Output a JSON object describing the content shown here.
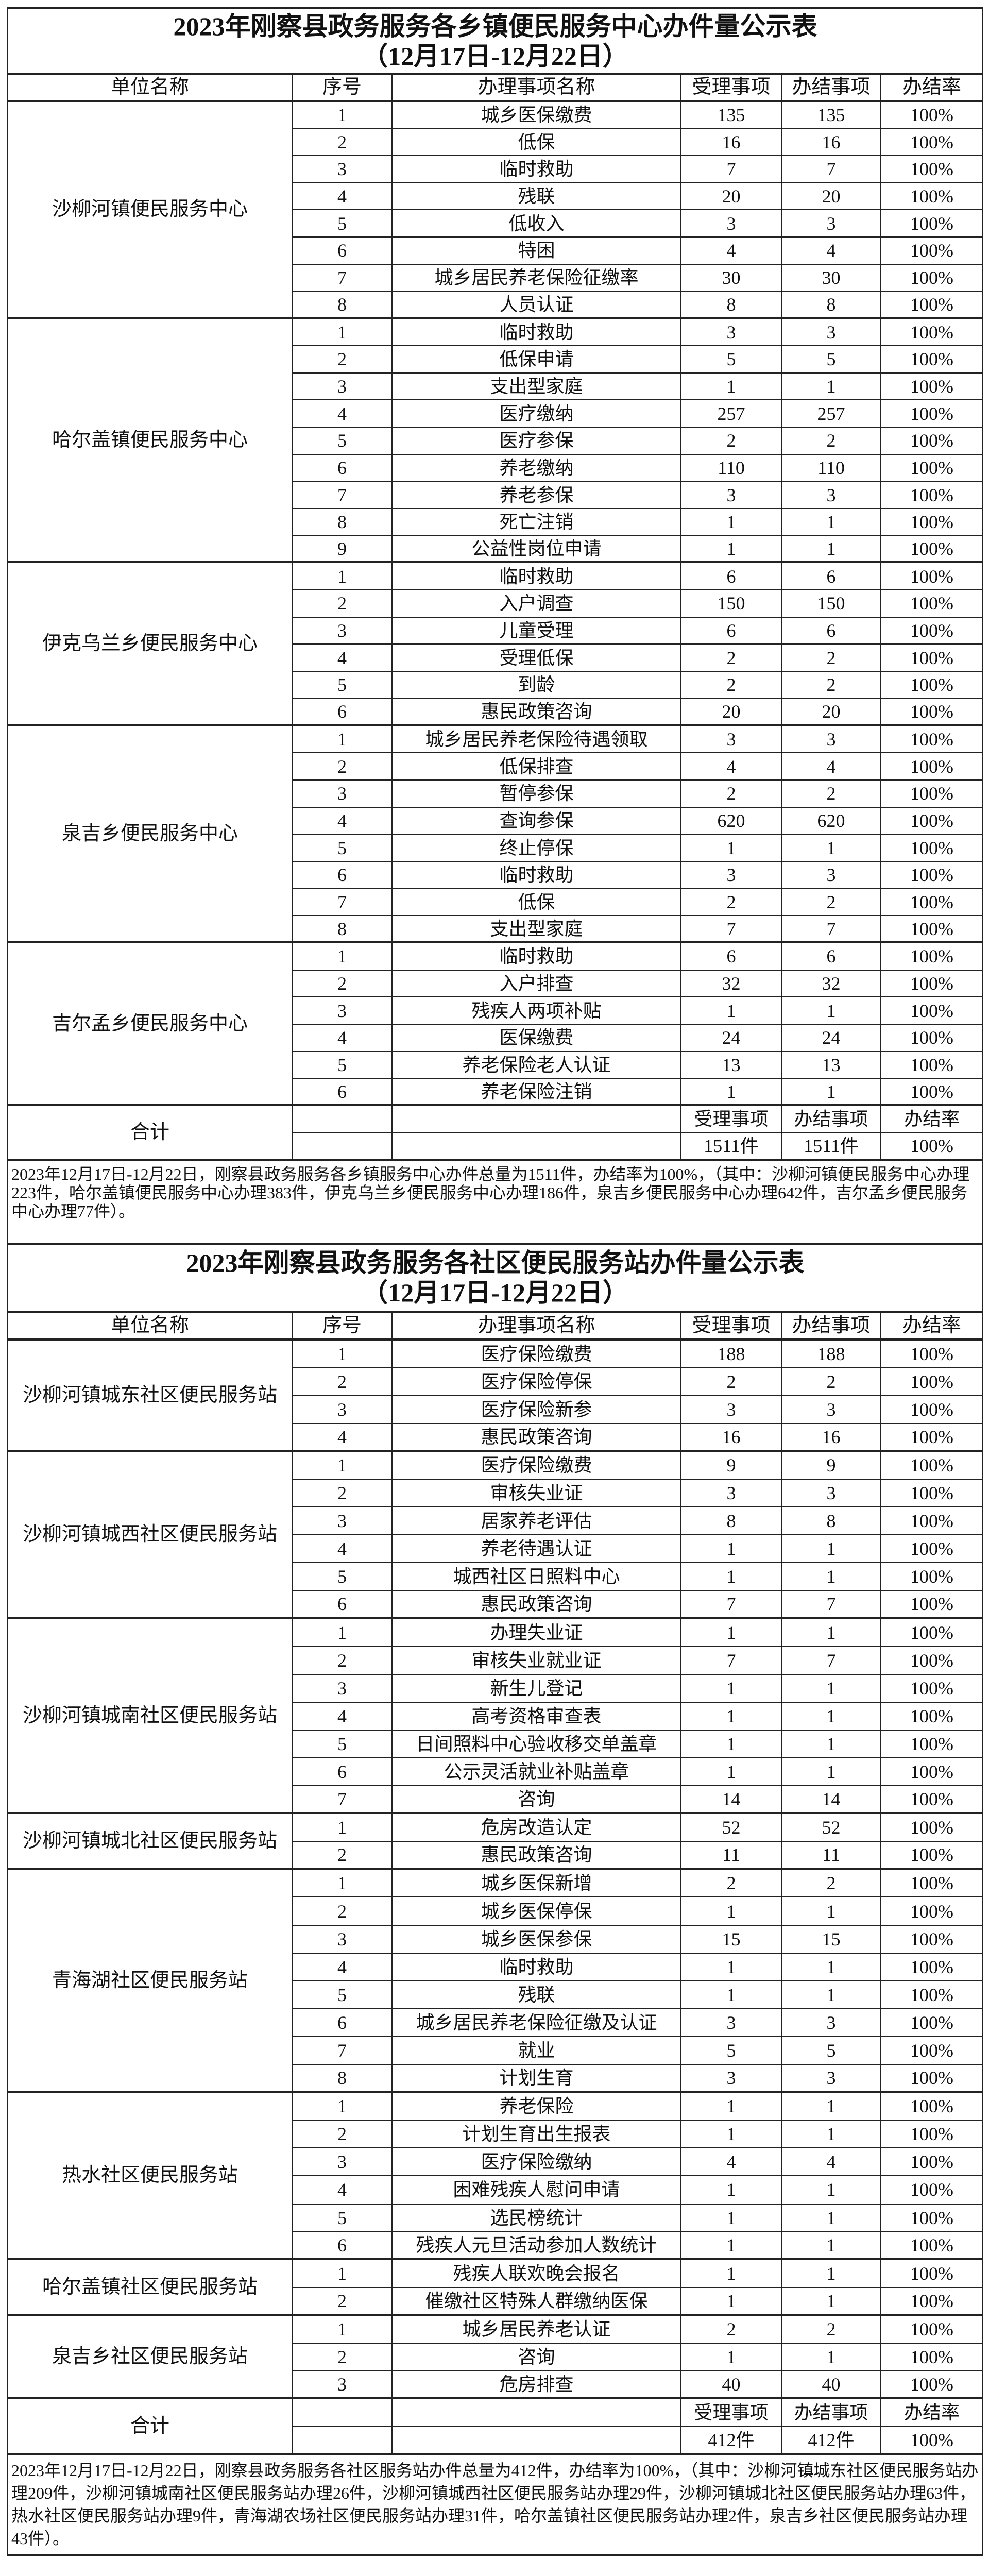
{
  "columns": [
    "单位名称",
    "序号",
    "办理事项名称",
    "受理事项",
    "办结事项",
    "办结率"
  ],
  "tables": [
    {
      "title": "2023年刚察县政务服务各乡镇便民服务中心办件量公示表",
      "subtitle": "（12月17日-12月22日）",
      "groups": [
        {
          "unit": "沙柳河镇便民服务中心",
          "rows": [
            [
              "1",
              "城乡医保缴费",
              "135",
              "135",
              "100%"
            ],
            [
              "2",
              "低保",
              "16",
              "16",
              "100%"
            ],
            [
              "3",
              "临时救助",
              "7",
              "7",
              "100%"
            ],
            [
              "4",
              "残联",
              "20",
              "20",
              "100%"
            ],
            [
              "5",
              "低收入",
              "3",
              "3",
              "100%"
            ],
            [
              "6",
              "特困",
              "4",
              "4",
              "100%"
            ],
            [
              "7",
              "城乡居民养老保险征缴率",
              "30",
              "30",
              "100%"
            ],
            [
              "8",
              "人员认证",
              "8",
              "8",
              "100%"
            ]
          ]
        },
        {
          "unit": "哈尔盖镇便民服务中心",
          "rows": [
            [
              "1",
              "临时救助",
              "3",
              "3",
              "100%"
            ],
            [
              "2",
              "低保申请",
              "5",
              "5",
              "100%"
            ],
            [
              "3",
              "支出型家庭",
              "1",
              "1",
              "100%"
            ],
            [
              "4",
              "医疗缴纳",
              "257",
              "257",
              "100%"
            ],
            [
              "5",
              "医疗参保",
              "2",
              "2",
              "100%"
            ],
            [
              "6",
              "养老缴纳",
              "110",
              "110",
              "100%"
            ],
            [
              "7",
              "养老参保",
              "3",
              "3",
              "100%"
            ],
            [
              "8",
              "死亡注销",
              "1",
              "1",
              "100%"
            ],
            [
              "9",
              "公益性岗位申请",
              "1",
              "1",
              "100%"
            ]
          ]
        },
        {
          "unit": "伊克乌兰乡便民服务中心",
          "rows": [
            [
              "1",
              "临时救助",
              "6",
              "6",
              "100%"
            ],
            [
              "2",
              "入户调查",
              "150",
              "150",
              "100%"
            ],
            [
              "3",
              "儿童受理",
              "6",
              "6",
              "100%"
            ],
            [
              "4",
              "受理低保",
              "2",
              "2",
              "100%"
            ],
            [
              "5",
              "到龄",
              "2",
              "2",
              "100%"
            ],
            [
              "6",
              "惠民政策咨询",
              "20",
              "20",
              "100%"
            ]
          ]
        },
        {
          "unit": "泉吉乡便民服务中心",
          "rows": [
            [
              "1",
              "城乡居民养老保险待遇领取",
              "3",
              "3",
              "100%"
            ],
            [
              "2",
              "低保排查",
              "4",
              "4",
              "100%"
            ],
            [
              "3",
              "暂停参保",
              "2",
              "2",
              "100%"
            ],
            [
              "4",
              "查询参保",
              "620",
              "620",
              "100%"
            ],
            [
              "5",
              "终止停保",
              "1",
              "1",
              "100%"
            ],
            [
              "6",
              "临时救助",
              "3",
              "3",
              "100%"
            ],
            [
              "7",
              "低保",
              "2",
              "2",
              "100%"
            ],
            [
              "8",
              "支出型家庭",
              "7",
              "7",
              "100%"
            ]
          ]
        },
        {
          "unit": "吉尔孟乡便民服务中心",
          "rows": [
            [
              "1",
              "临时救助",
              "6",
              "6",
              "100%"
            ],
            [
              "2",
              "入户排查",
              "32",
              "32",
              "100%"
            ],
            [
              "3",
              "残疾人两项补贴",
              "1",
              "1",
              "100%"
            ],
            [
              "4",
              "医保缴费",
              "24",
              "24",
              "100%"
            ],
            [
              "5",
              "养老保险老人认证",
              "13",
              "13",
              "100%"
            ],
            [
              "6",
              "养老保险注销",
              "1",
              "1",
              "100%"
            ]
          ]
        }
      ],
      "total": {
        "label": "合计",
        "headers": [
          "受理事项",
          "办结事项",
          "办结率"
        ],
        "values": [
          "1511件",
          "1511件",
          "100%"
        ]
      },
      "note": "2023年12月17日-12月22日，刚察县政务服务各乡镇服务中心办件总量为1511件，办结率为100%，（其中：沙柳河镇便民服务中心办理223件，哈尔盖镇便民服务中心办理383件，伊克乌兰乡便民服务中心办理186件，泉吉乡便民服务中心办理642件，吉尔孟乡便民服务中心办理77件）。"
    },
    {
      "title": "2023年刚察县政务服务各社区便民服务站办件量公示表",
      "subtitle": "（12月17日-12月22日）",
      "groups": [
        {
          "unit": "沙柳河镇城东社区便民服务站",
          "rows": [
            [
              "1",
              "医疗保险缴费",
              "188",
              "188",
              "100%"
            ],
            [
              "2",
              "医疗保险停保",
              "2",
              "2",
              "100%"
            ],
            [
              "3",
              "医疗保险新参",
              "3",
              "3",
              "100%"
            ],
            [
              "4",
              "惠民政策咨询",
              "16",
              "16",
              "100%"
            ]
          ]
        },
        {
          "unit": "沙柳河镇城西社区便民服务站",
          "rows": [
            [
              "1",
              "医疗保险缴费",
              "9",
              "9",
              "100%"
            ],
            [
              "2",
              "审核失业证",
              "3",
              "3",
              "100%"
            ],
            [
              "3",
              "居家养老评估",
              "8",
              "8",
              "100%"
            ],
            [
              "4",
              "养老待遇认证",
              "1",
              "1",
              "100%"
            ],
            [
              "5",
              "城西社区日照料中心",
              "1",
              "1",
              "100%"
            ],
            [
              "6",
              "惠民政策咨询",
              "7",
              "7",
              "100%"
            ]
          ]
        },
        {
          "unit": "沙柳河镇城南社区便民服务站",
          "rows": [
            [
              "1",
              "办理失业证",
              "1",
              "1",
              "100%"
            ],
            [
              "2",
              "审核失业就业证",
              "7",
              "7",
              "100%"
            ],
            [
              "3",
              "新生儿登记",
              "1",
              "1",
              "100%"
            ],
            [
              "4",
              "高考资格审查表",
              "1",
              "1",
              "100%"
            ],
            [
              "5",
              "日间照料中心验收移交单盖章",
              "1",
              "1",
              "100%"
            ],
            [
              "6",
              "公示灵活就业补贴盖章",
              "1",
              "1",
              "100%"
            ],
            [
              "7",
              "咨询",
              "14",
              "14",
              "100%"
            ]
          ]
        },
        {
          "unit": "沙柳河镇城北社区便民服务站",
          "rows": [
            [
              "1",
              "危房改造认定",
              "52",
              "52",
              "100%"
            ],
            [
              "2",
              "惠民政策咨询",
              "11",
              "11",
              "100%"
            ]
          ]
        },
        {
          "unit": "青海湖社区便民服务站",
          "rows": [
            [
              "1",
              "城乡医保新增",
              "2",
              "2",
              "100%"
            ],
            [
              "2",
              "城乡医保停保",
              "1",
              "1",
              "100%"
            ],
            [
              "3",
              "城乡医保参保",
              "15",
              "15",
              "100%"
            ],
            [
              "4",
              "临时救助",
              "1",
              "1",
              "100%"
            ],
            [
              "5",
              "残联",
              "1",
              "1",
              "100%"
            ],
            [
              "6",
              "城乡居民养老保险征缴及认证",
              "3",
              "3",
              "100%"
            ],
            [
              "7",
              "就业",
              "5",
              "5",
              "100%"
            ],
            [
              "8",
              "计划生育",
              "3",
              "3",
              "100%"
            ]
          ]
        },
        {
          "unit": "热水社区便民服务站",
          "rows": [
            [
              "1",
              "养老保险",
              "1",
              "1",
              "100%"
            ],
            [
              "2",
              "计划生育出生报表",
              "1",
              "1",
              "100%"
            ],
            [
              "3",
              "医疗保险缴纳",
              "4",
              "4",
              "100%"
            ],
            [
              "4",
              "困难残疾人慰问申请",
              "1",
              "1",
              "100%"
            ],
            [
              "5",
              "选民榜统计",
              "1",
              "1",
              "100%"
            ],
            [
              "6",
              "残疾人元旦活动参加人数统计",
              "1",
              "1",
              "100%"
            ]
          ]
        },
        {
          "unit": "哈尔盖镇社区便民服务站",
          "rows": [
            [
              "1",
              "残疾人联欢晚会报名",
              "1",
              "1",
              "100%"
            ],
            [
              "2",
              "催缴社区特殊人群缴纳医保",
              "1",
              "1",
              "100%"
            ]
          ]
        },
        {
          "unit": "泉吉乡社区便民服务站",
          "rows": [
            [
              "1",
              "城乡居民养老认证",
              "2",
              "2",
              "100%"
            ],
            [
              "2",
              "咨询",
              "1",
              "1",
              "100%"
            ],
            [
              "3",
              "危房排查",
              "40",
              "40",
              "100%"
            ]
          ]
        }
      ],
      "total": {
        "label": "合计",
        "headers": [
          "受理事项",
          "办结事项",
          "办结率"
        ],
        "values": [
          "412件",
          "412件",
          "100%"
        ]
      },
      "note": "2023年12月17日-12月22日，刚察县政务服务各社区服务站办件总量为412件，办结率为100%，（其中：沙柳河镇城东社区便民服务站办理209件，沙柳河镇城南社区便民服务站办理26件，沙柳河镇城西社区便民服务站办理29件，沙柳河镇城北社区便民服务站办理63件，热水社区便民服务站办理9件，青海湖农场社区便民服务站办理31件，哈尔盖镇社区便民服务站办理2件，泉吉乡社区便民服务站办理43件）。"
    }
  ]
}
